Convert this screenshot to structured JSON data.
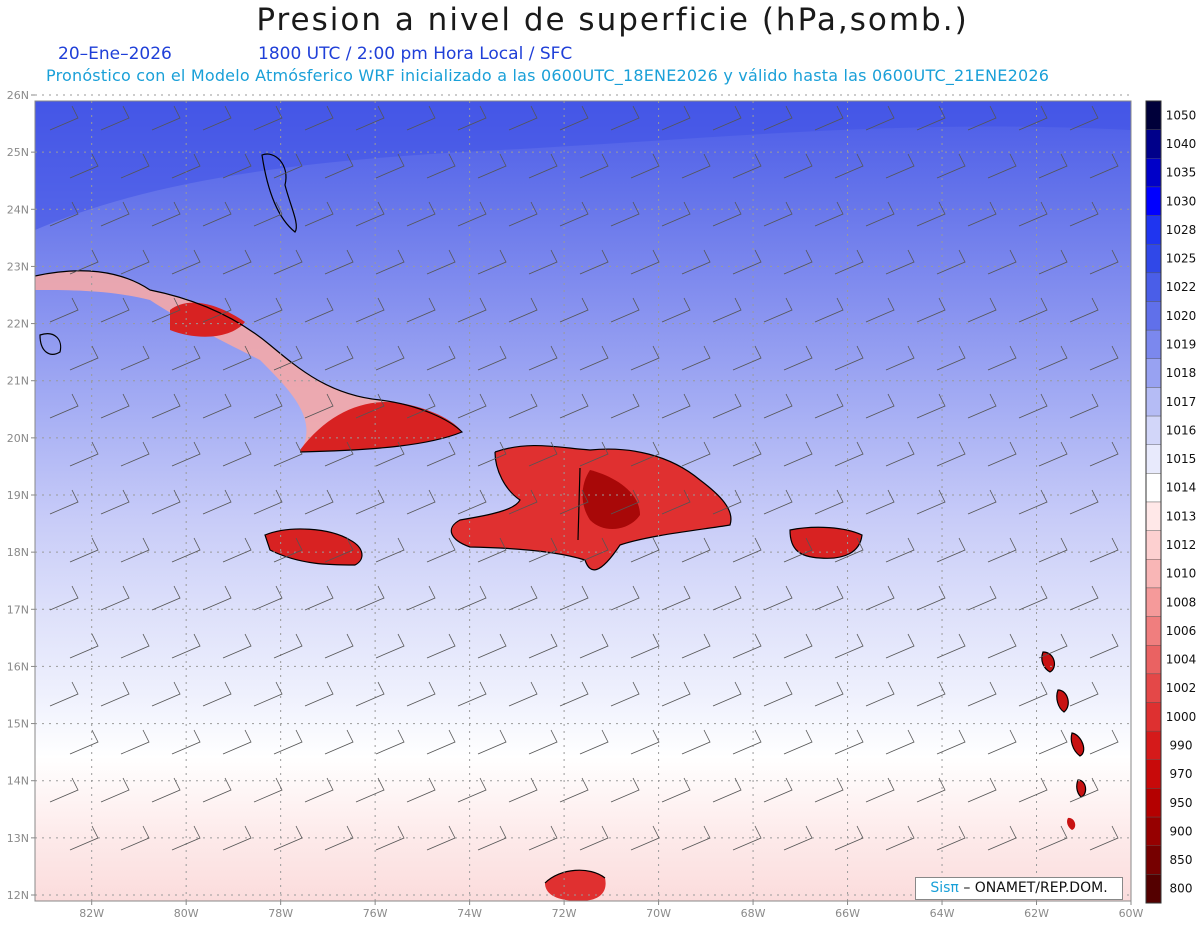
{
  "header": {
    "title": "Presion a nivel de superficie (hPa,somb.)",
    "date": "20–Ene–2026",
    "time": "1800 UTC / 2:00 pm Hora Local / SFC",
    "forecast": "Pronóstico con el Modelo Atmósferico WRF inicializado a las 0600UTC_18ENE2026 y válido hasta las  0600UTC_21ENE2026"
  },
  "map": {
    "lat_labels": [
      "26N",
      "25N",
      "24N",
      "23N",
      "22N",
      "21N",
      "20N",
      "19N",
      "18N",
      "17N",
      "16N",
      "15N",
      "14N",
      "13N",
      "12N"
    ],
    "lon_labels": [
      "82W",
      "80W",
      "78W",
      "76W",
      "74W",
      "72W",
      "70W",
      "68W",
      "66W",
      "64W",
      "62W",
      "60W"
    ],
    "lat_range": [
      12,
      26
    ],
    "lon_range": [
      -83.2,
      -60
    ]
  },
  "colorbar": {
    "levels": [
      "1050",
      "1040",
      "1035",
      "1030",
      "1028",
      "1025",
      "1022",
      "1020",
      "1019",
      "1018",
      "1017",
      "1016",
      "1015",
      "1014",
      "1013",
      "1012",
      "1010",
      "1008",
      "1006",
      "1004",
      "1002",
      "1000",
      "990",
      "970",
      "950",
      "900",
      "850",
      "800"
    ],
    "colors": [
      "#00003a",
      "#00008a",
      "#0000c8",
      "#0000ff",
      "#1f35f0",
      "#3048e8",
      "#4a5ee8",
      "#6070ea",
      "#7b88ee",
      "#98a2f2",
      "#b5bcf5",
      "#d2d6f9",
      "#e8eafc",
      "#ffffff",
      "#ffe8e8",
      "#fdd0d0",
      "#f9b6b6",
      "#f59a9a",
      "#f07e7e",
      "#ea6262",
      "#e44848",
      "#de3030",
      "#d51a1a",
      "#c80a0a",
      "#b40000",
      "#960000",
      "#760000",
      "#540000"
    ]
  },
  "credit": {
    "sis": "Sisπ",
    "rest": "– ONAMET/REP.DOM."
  }
}
